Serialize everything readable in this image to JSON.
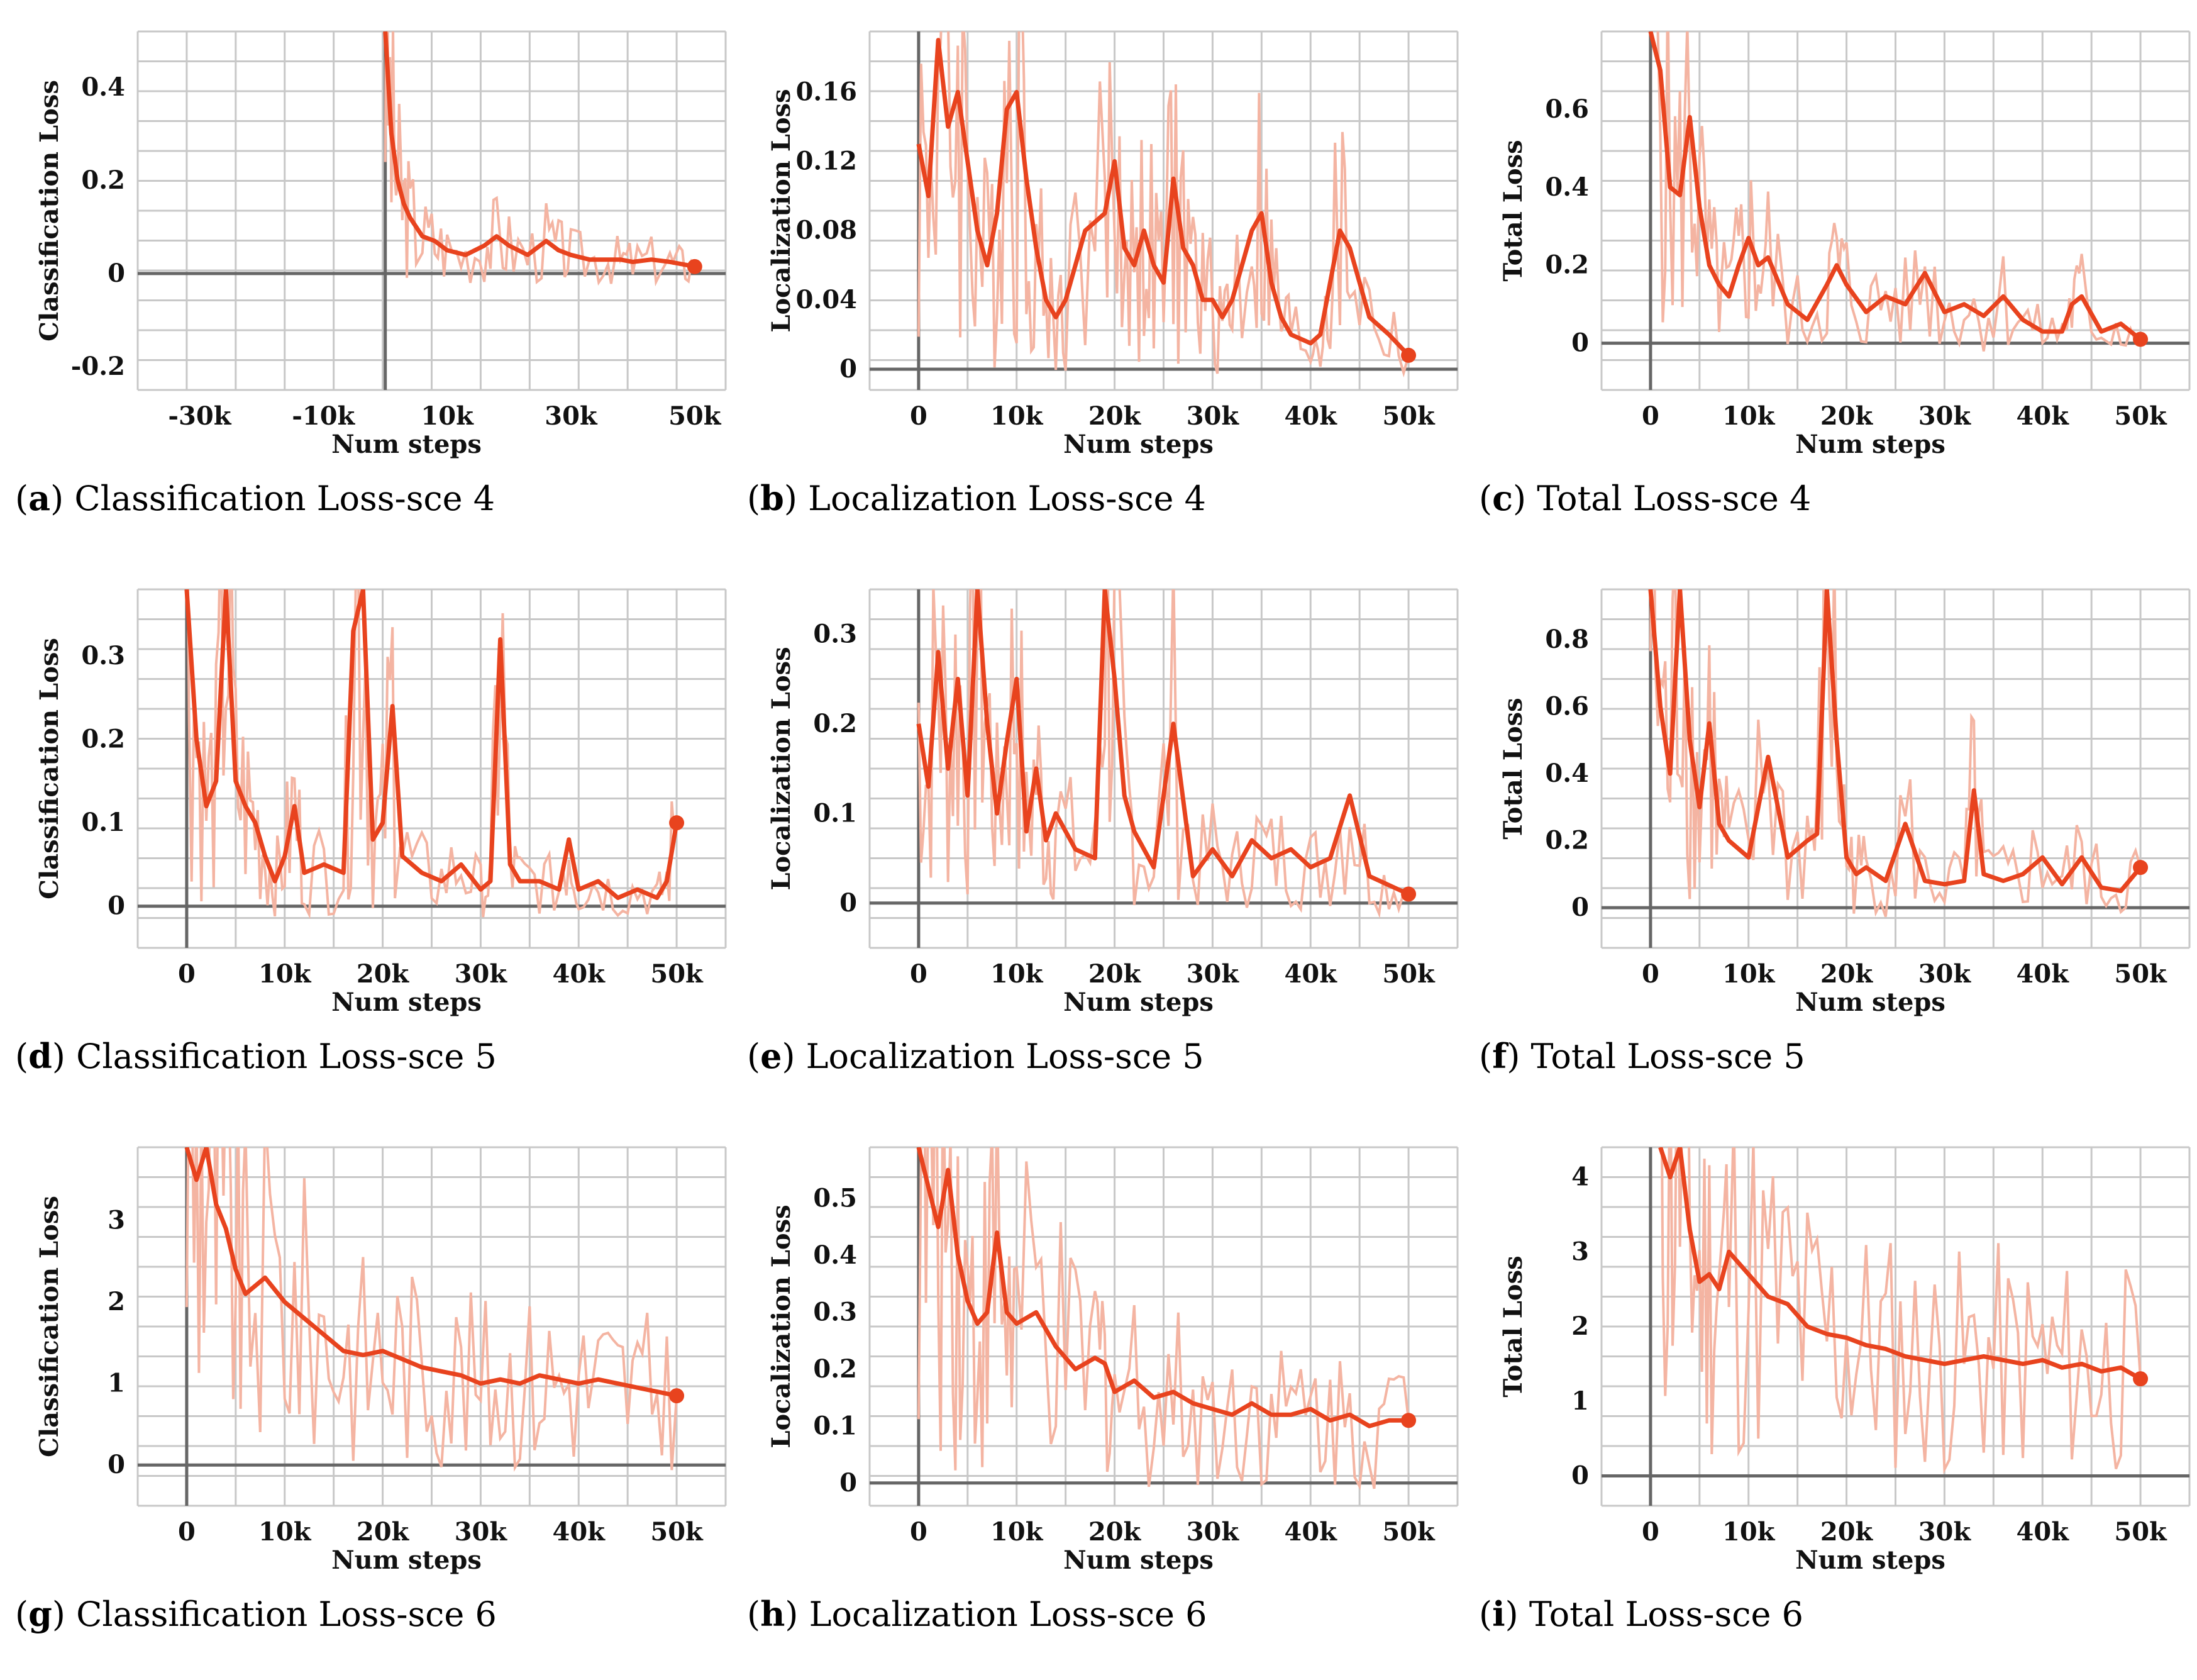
{
  "figure": {
    "panels": [
      {
        "letter": "a",
        "title": "Classification Loss-sce 4"
      },
      {
        "letter": "b",
        "title": "Localization Loss-sce 4"
      },
      {
        "letter": "c",
        "title": "Total Loss-sce 4"
      },
      {
        "letter": "d",
        "title": "Classification Loss-sce 5"
      },
      {
        "letter": "e",
        "title": "Localization Loss-sce 5"
      },
      {
        "letter": "f",
        "title": "Total Loss-sce 5"
      },
      {
        "letter": "g",
        "title": "Classification Loss-sce 6"
      },
      {
        "letter": "h",
        "title": "Localization Loss-sce 6"
      },
      {
        "letter": "i",
        "title": "Total Loss-sce 6"
      }
    ]
  },
  "colors": {
    "line": "#e8431e",
    "raw": "#f4b4a2",
    "grid": "#c8c8c8",
    "axis": "#666666"
  },
  "chart_data": [
    {
      "type": "line",
      "title": "Classification Loss-sce 4",
      "xlabel": "Num steps",
      "ylabel": "Classification Loss",
      "xlim": [
        -40000,
        55000
      ],
      "ylim": [
        -0.25,
        0.52
      ],
      "xticks": [
        -30000,
        -10000,
        10000,
        30000,
        50000
      ],
      "xtick_labels": [
        "-30k",
        "-10k",
        "10k",
        "30k",
        "50k"
      ],
      "yticks": [
        -0.2,
        0,
        0.2,
        0.4
      ],
      "ytick_labels": [
        "-0.2",
        "0",
        "0.2",
        "0.4"
      ],
      "grid": true,
      "legend": "none",
      "x": [
        0,
        1000,
        2000,
        3000,
        4000,
        6000,
        8000,
        10000,
        13000,
        16000,
        18000,
        20000,
        23000,
        26000,
        28000,
        30000,
        33000,
        36000,
        38000,
        40000,
        43000,
        46000,
        48000,
        50000
      ],
      "y": [
        0.52,
        0.3,
        0.2,
        0.15,
        0.12,
        0.08,
        0.07,
        0.05,
        0.04,
        0.06,
        0.08,
        0.06,
        0.04,
        0.07,
        0.05,
        0.04,
        0.03,
        0.03,
        0.03,
        0.025,
        0.03,
        0.025,
        0.02,
        0.015
      ]
    },
    {
      "type": "line",
      "title": "Localization Loss-sce 4",
      "xlabel": "Num steps",
      "ylabel": "Localization Loss",
      "xlim": [
        -5000,
        55000
      ],
      "ylim": [
        -0.012,
        0.195
      ],
      "xticks": [
        0,
        10000,
        20000,
        30000,
        40000,
        50000
      ],
      "xtick_labels": [
        "0",
        "10k",
        "20k",
        "30k",
        "40k",
        "50k"
      ],
      "yticks": [
        0,
        0.04,
        0.08,
        0.12,
        0.16
      ],
      "ytick_labels": [
        "0",
        "0.04",
        "0.08",
        "0.12",
        "0.16"
      ],
      "grid": true,
      "legend": "none",
      "x": [
        0,
        1000,
        2000,
        3000,
        4000,
        5000,
        6000,
        7000,
        8000,
        9000,
        10000,
        11000,
        12000,
        13000,
        14000,
        15000,
        17000,
        19000,
        20000,
        21000,
        22000,
        23000,
        24000,
        25000,
        26000,
        27000,
        28000,
        29000,
        30000,
        31000,
        32000,
        34000,
        35000,
        36000,
        37000,
        38000,
        40000,
        41000,
        42000,
        43000,
        44000,
        46000,
        48000,
        50000
      ],
      "y": [
        0.13,
        0.1,
        0.19,
        0.14,
        0.16,
        0.12,
        0.08,
        0.06,
        0.09,
        0.15,
        0.16,
        0.11,
        0.07,
        0.04,
        0.03,
        0.04,
        0.08,
        0.09,
        0.12,
        0.07,
        0.06,
        0.08,
        0.06,
        0.05,
        0.11,
        0.07,
        0.06,
        0.04,
        0.04,
        0.03,
        0.04,
        0.08,
        0.09,
        0.05,
        0.03,
        0.02,
        0.015,
        0.02,
        0.05,
        0.08,
        0.07,
        0.03,
        0.02,
        0.008
      ]
    },
    {
      "type": "line",
      "title": "Total Loss-sce 4",
      "xlabel": "Num steps",
      "ylabel": "Total Loss",
      "xlim": [
        -5000,
        55000
      ],
      "ylim": [
        -0.12,
        0.8
      ],
      "xticks": [
        0,
        10000,
        20000,
        30000,
        40000,
        50000
      ],
      "xtick_labels": [
        "0",
        "10k",
        "20k",
        "30k",
        "40k",
        "50k"
      ],
      "yticks": [
        0,
        0.2,
        0.4,
        0.6
      ],
      "ytick_labels": [
        "0",
        "0.2",
        "0.4",
        "0.6"
      ],
      "grid": true,
      "legend": "none",
      "x": [
        0,
        1000,
        2000,
        3000,
        4000,
        5000,
        6000,
        7000,
        8000,
        9000,
        10000,
        11000,
        12000,
        14000,
        16000,
        18000,
        19000,
        20000,
        22000,
        24000,
        26000,
        28000,
        30000,
        32000,
        34000,
        36000,
        38000,
        40000,
        42000,
        43000,
        44000,
        46000,
        48000,
        50000
      ],
      "y": [
        0.8,
        0.7,
        0.4,
        0.38,
        0.58,
        0.35,
        0.2,
        0.15,
        0.12,
        0.2,
        0.27,
        0.2,
        0.22,
        0.1,
        0.06,
        0.15,
        0.2,
        0.15,
        0.08,
        0.12,
        0.1,
        0.18,
        0.08,
        0.1,
        0.07,
        0.12,
        0.06,
        0.03,
        0.03,
        0.1,
        0.12,
        0.03,
        0.05,
        0.01
      ]
    },
    {
      "type": "line",
      "title": "Classification Loss-sce 5",
      "xlabel": "Num steps",
      "ylabel": "Classification Loss",
      "xlim": [
        -5000,
        55000
      ],
      "ylim": [
        -0.05,
        0.38
      ],
      "xticks": [
        0,
        10000,
        20000,
        30000,
        40000,
        50000
      ],
      "xtick_labels": [
        "0",
        "10k",
        "20k",
        "30k",
        "40k",
        "50k"
      ],
      "yticks": [
        0,
        0.1,
        0.2,
        0.3
      ],
      "ytick_labels": [
        "0",
        "0.1",
        "0.2",
        "0.3"
      ],
      "grid": true,
      "legend": "none",
      "x": [
        0,
        1000,
        2000,
        3000,
        4000,
        5000,
        6000,
        7000,
        8000,
        9000,
        10000,
        11000,
        12000,
        14000,
        16000,
        17000,
        18000,
        19000,
        20000,
        21000,
        22000,
        24000,
        26000,
        28000,
        30000,
        31000,
        32000,
        33000,
        34000,
        36000,
        38000,
        39000,
        40000,
        42000,
        44000,
        46000,
        48000,
        49000,
        50000
      ],
      "y": [
        0.38,
        0.2,
        0.12,
        0.15,
        0.38,
        0.15,
        0.12,
        0.1,
        0.06,
        0.03,
        0.06,
        0.12,
        0.04,
        0.05,
        0.04,
        0.33,
        0.38,
        0.08,
        0.1,
        0.24,
        0.06,
        0.04,
        0.03,
        0.05,
        0.02,
        0.03,
        0.32,
        0.05,
        0.03,
        0.03,
        0.02,
        0.08,
        0.02,
        0.03,
        0.01,
        0.02,
        0.01,
        0.03,
        0.1
      ]
    },
    {
      "type": "line",
      "title": "Localization Loss-sce 5",
      "xlabel": "Num steps",
      "ylabel": "Localization Loss",
      "xlim": [
        -5000,
        55000
      ],
      "ylim": [
        -0.05,
        0.35
      ],
      "xticks": [
        0,
        10000,
        20000,
        30000,
        40000,
        50000
      ],
      "xtick_labels": [
        "0",
        "10k",
        "20k",
        "30k",
        "40k",
        "50k"
      ],
      "yticks": [
        0,
        0.1,
        0.2,
        0.3
      ],
      "ytick_labels": [
        "0",
        "0.1",
        "0.2",
        "0.3"
      ],
      "grid": true,
      "legend": "none",
      "x": [
        0,
        1000,
        2000,
        3000,
        4000,
        5000,
        6000,
        7000,
        8000,
        9000,
        10000,
        11000,
        12000,
        13000,
        14000,
        16000,
        18000,
        19000,
        20000,
        21000,
        22000,
        24000,
        26000,
        28000,
        30000,
        32000,
        34000,
        36000,
        38000,
        40000,
        42000,
        44000,
        46000,
        48000,
        50000
      ],
      "y": [
        0.2,
        0.13,
        0.28,
        0.15,
        0.25,
        0.12,
        0.35,
        0.2,
        0.1,
        0.18,
        0.25,
        0.08,
        0.15,
        0.07,
        0.1,
        0.06,
        0.05,
        0.35,
        0.25,
        0.12,
        0.08,
        0.04,
        0.2,
        0.03,
        0.06,
        0.03,
        0.07,
        0.05,
        0.06,
        0.04,
        0.05,
        0.12,
        0.03,
        0.02,
        0.01
      ]
    },
    {
      "type": "line",
      "title": "Total Loss-sce 5",
      "xlabel": "Num steps",
      "ylabel": "Total Loss",
      "xlim": [
        -5000,
        55000
      ],
      "ylim": [
        -0.12,
        0.95
      ],
      "xticks": [
        0,
        10000,
        20000,
        30000,
        40000,
        50000
      ],
      "xtick_labels": [
        "0",
        "10k",
        "20k",
        "30k",
        "40k",
        "50k"
      ],
      "yticks": [
        0,
        0.2,
        0.4,
        0.6,
        0.8
      ],
      "ytick_labels": [
        "0",
        "0.2",
        "0.4",
        "0.6",
        "0.8"
      ],
      "grid": true,
      "legend": "none",
      "x": [
        0,
        1000,
        2000,
        3000,
        4000,
        5000,
        6000,
        7000,
        8000,
        10000,
        12000,
        14000,
        16000,
        17000,
        18000,
        19000,
        20000,
        21000,
        22000,
        24000,
        26000,
        28000,
        30000,
        32000,
        33000,
        34000,
        36000,
        38000,
        40000,
        42000,
        44000,
        46000,
        48000,
        50000
      ],
      "y": [
        0.95,
        0.6,
        0.4,
        0.95,
        0.5,
        0.3,
        0.55,
        0.25,
        0.2,
        0.15,
        0.45,
        0.15,
        0.2,
        0.22,
        0.95,
        0.5,
        0.15,
        0.1,
        0.12,
        0.08,
        0.25,
        0.08,
        0.07,
        0.08,
        0.35,
        0.1,
        0.08,
        0.1,
        0.15,
        0.07,
        0.15,
        0.06,
        0.05,
        0.12
      ]
    },
    {
      "type": "line",
      "title": "Classification Loss-sce 6",
      "xlabel": "Num steps",
      "ylabel": "Classification Loss",
      "xlim": [
        -5000,
        55000
      ],
      "ylim": [
        -0.5,
        3.9
      ],
      "xticks": [
        0,
        10000,
        20000,
        30000,
        40000,
        50000
      ],
      "xtick_labels": [
        "0",
        "10k",
        "20k",
        "30k",
        "40k",
        "50k"
      ],
      "yticks": [
        0,
        1,
        2,
        3
      ],
      "ytick_labels": [
        "0",
        "1",
        "2",
        "3"
      ],
      "grid": true,
      "legend": "none",
      "x": [
        0,
        1000,
        2000,
        3000,
        4000,
        5000,
        6000,
        8000,
        10000,
        12000,
        14000,
        16000,
        18000,
        20000,
        22000,
        24000,
        26000,
        28000,
        30000,
        32000,
        34000,
        36000,
        38000,
        40000,
        42000,
        44000,
        46000,
        48000,
        50000
      ],
      "y": [
        3.9,
        3.5,
        3.9,
        3.2,
        2.9,
        2.4,
        2.1,
        2.3,
        2.0,
        1.8,
        1.6,
        1.4,
        1.35,
        1.4,
        1.3,
        1.2,
        1.15,
        1.1,
        1.0,
        1.05,
        1.0,
        1.1,
        1.05,
        1.0,
        1.05,
        1.0,
        0.95,
        0.9,
        0.85
      ]
    },
    {
      "type": "line",
      "title": "Localization Loss-sce 6",
      "xlabel": "Num steps",
      "ylabel": "Localization Loss",
      "xlim": [
        -5000,
        55000
      ],
      "ylim": [
        -0.04,
        0.59
      ],
      "xticks": [
        0,
        10000,
        20000,
        30000,
        40000,
        50000
      ],
      "xtick_labels": [
        "0",
        "10k",
        "20k",
        "30k",
        "40k",
        "50k"
      ],
      "yticks": [
        0,
        0.1,
        0.2,
        0.3,
        0.4,
        0.5
      ],
      "ytick_labels": [
        "0",
        "0.1",
        "0.2",
        "0.3",
        "0.4",
        "0.5"
      ],
      "grid": true,
      "legend": "none",
      "x": [
        0,
        1000,
        2000,
        3000,
        4000,
        5000,
        6000,
        7000,
        8000,
        9000,
        10000,
        12000,
        14000,
        16000,
        18000,
        19000,
        20000,
        22000,
        24000,
        26000,
        28000,
        30000,
        32000,
        34000,
        36000,
        38000,
        40000,
        42000,
        44000,
        46000,
        48000,
        50000
      ],
      "y": [
        0.59,
        0.52,
        0.45,
        0.55,
        0.4,
        0.32,
        0.28,
        0.3,
        0.44,
        0.3,
        0.28,
        0.3,
        0.24,
        0.2,
        0.22,
        0.21,
        0.16,
        0.18,
        0.15,
        0.16,
        0.14,
        0.13,
        0.12,
        0.14,
        0.12,
        0.12,
        0.13,
        0.11,
        0.12,
        0.1,
        0.11,
        0.11
      ]
    },
    {
      "type": "line",
      "title": "Total Loss-sce 6",
      "xlabel": "Num steps",
      "ylabel": "Total Loss",
      "xlim": [
        -5000,
        55000
      ],
      "ylim": [
        -0.4,
        4.4
      ],
      "xticks": [
        0,
        10000,
        20000,
        30000,
        40000,
        50000
      ],
      "xtick_labels": [
        "0",
        "10k",
        "20k",
        "30k",
        "40k",
        "50k"
      ],
      "yticks": [
        0,
        1,
        2,
        3,
        4
      ],
      "ytick_labels": [
        "0",
        "1",
        "2",
        "3",
        "4"
      ],
      "grid": true,
      "legend": "none",
      "x": [
        1000,
        2000,
        3000,
        4000,
        5000,
        6000,
        7000,
        8000,
        10000,
        12000,
        14000,
        16000,
        18000,
        20000,
        22000,
        24000,
        26000,
        28000,
        30000,
        32000,
        34000,
        36000,
        38000,
        40000,
        42000,
        44000,
        46000,
        48000,
        50000
      ],
      "y": [
        4.4,
        4.0,
        4.4,
        3.3,
        2.6,
        2.7,
        2.5,
        3.0,
        2.7,
        2.4,
        2.3,
        2.0,
        1.9,
        1.85,
        1.75,
        1.7,
        1.6,
        1.55,
        1.5,
        1.55,
        1.6,
        1.55,
        1.5,
        1.55,
        1.45,
        1.5,
        1.4,
        1.45,
        1.3
      ]
    }
  ]
}
